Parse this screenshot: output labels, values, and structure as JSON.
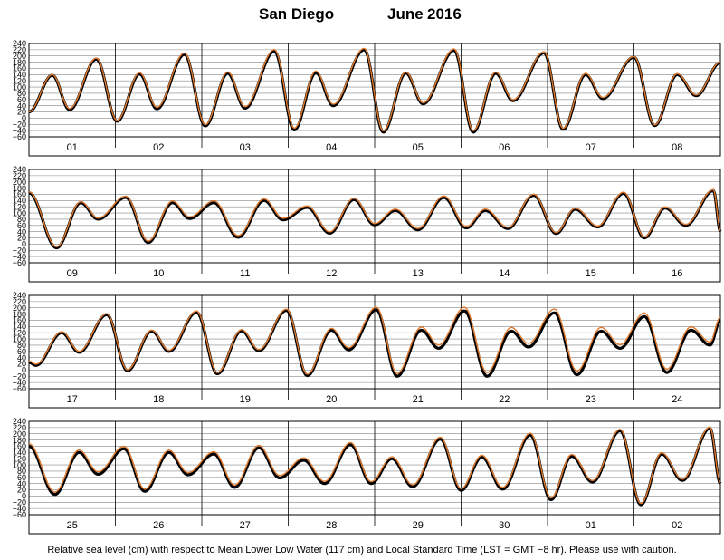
{
  "title": {
    "station": "San Diego",
    "month": "June",
    "year": "2016"
  },
  "caption": "Relative sea level (cm) with respect to Mean Lower Low Water (117 cm) and Local Standard Time (LST = GMT −8 hr). Please use with caution.",
  "colors": {
    "observed": "#000000",
    "predicted": "#e07a2e",
    "grid": "#888888",
    "frame": "#000000"
  },
  "chart_data": {
    "type": "line",
    "ylim": [
      -60,
      240
    ],
    "ytick_labels": [
      "240",
      "220",
      "200",
      "180",
      "160",
      "140",
      "120",
      "100",
      "80",
      "60",
      "40",
      "20",
      "0",
      "−20",
      "−40",
      "−60"
    ],
    "grid": true,
    "series_names": [
      "observed",
      "predicted"
    ],
    "panels": [
      {
        "days": [
          "01",
          "02",
          "03",
          "04",
          "05",
          "06",
          "07",
          "08"
        ],
        "extrema": [
          [
            0,
            20
          ],
          [
            0.27,
            138
          ],
          [
            0.47,
            27
          ],
          [
            0.78,
            190
          ],
          [
            1.02,
            -10
          ],
          [
            1.28,
            142
          ],
          [
            1.48,
            30
          ],
          [
            1.8,
            205
          ],
          [
            2.04,
            -25
          ],
          [
            2.3,
            144
          ],
          [
            2.5,
            32
          ],
          [
            2.84,
            215
          ],
          [
            3.07,
            -38
          ],
          [
            3.32,
            146
          ],
          [
            3.52,
            40
          ],
          [
            3.88,
            220
          ],
          [
            4.1,
            -45
          ],
          [
            4.36,
            145
          ],
          [
            4.56,
            46
          ],
          [
            4.92,
            218
          ],
          [
            5.14,
            -45
          ],
          [
            5.4,
            144
          ],
          [
            5.6,
            56
          ],
          [
            5.96,
            210
          ],
          [
            6.18,
            -36
          ],
          [
            6.44,
            140
          ],
          [
            6.64,
            63
          ],
          [
            7,
            196
          ],
          [
            7.24,
            -24
          ],
          [
            7.5,
            140
          ],
          [
            7.72,
            72
          ],
          [
            8,
            178
          ]
        ],
        "pred_offsets": [
          [
            0,
            0
          ],
          [
            0.5,
            4
          ],
          [
            1,
            3
          ],
          [
            1.5,
            5
          ],
          [
            2,
            4
          ],
          [
            2.5,
            5
          ],
          [
            3,
            6
          ],
          [
            3.5,
            5
          ],
          [
            4,
            4
          ],
          [
            4.5,
            3
          ],
          [
            5,
            5
          ],
          [
            5.5,
            4
          ],
          [
            6,
            3
          ],
          [
            6.5,
            4
          ],
          [
            7,
            2
          ],
          [
            7.5,
            3
          ],
          [
            8,
            2
          ]
        ]
      },
      {
        "days": [
          "09",
          "10",
          "11",
          "12",
          "13",
          "14",
          "15",
          "16"
        ],
        "extrema": [
          [
            0,
            165
          ],
          [
            0.32,
            -12
          ],
          [
            0.6,
            133
          ],
          [
            0.8,
            80
          ],
          [
            1.12,
            150
          ],
          [
            1.38,
            5
          ],
          [
            1.66,
            133
          ],
          [
            1.86,
            82
          ],
          [
            2.14,
            133
          ],
          [
            2.42,
            22
          ],
          [
            2.72,
            140
          ],
          [
            2.94,
            78
          ],
          [
            3.22,
            118
          ],
          [
            3.48,
            35
          ],
          [
            3.76,
            143
          ],
          [
            4.0,
            62
          ],
          [
            4.24,
            108
          ],
          [
            4.5,
            46
          ],
          [
            4.8,
            150
          ],
          [
            5.06,
            52
          ],
          [
            5.28,
            108
          ],
          [
            5.54,
            50
          ],
          [
            5.84,
            157
          ],
          [
            6.1,
            34
          ],
          [
            6.32,
            112
          ],
          [
            6.58,
            55
          ],
          [
            6.88,
            163
          ],
          [
            7.12,
            20
          ],
          [
            7.36,
            116
          ],
          [
            7.6,
            60
          ],
          [
            7.92,
            172
          ],
          [
            8,
            40
          ]
        ],
        "pred_offsets": [
          [
            0,
            3
          ],
          [
            1,
            4
          ],
          [
            2,
            6
          ],
          [
            3,
            5
          ],
          [
            4,
            4
          ],
          [
            5,
            5
          ],
          [
            6,
            3
          ],
          [
            7,
            4
          ],
          [
            8,
            3
          ]
        ]
      },
      {
        "days": [
          "17",
          "18",
          "19",
          "20",
          "21",
          "22",
          "23",
          "24"
        ],
        "extrema": [
          [
            0,
            25
          ],
          [
            0.08,
            15
          ],
          [
            0.38,
            120
          ],
          [
            0.58,
            57
          ],
          [
            0.9,
            178
          ],
          [
            1.14,
            -2
          ],
          [
            1.42,
            125
          ],
          [
            1.62,
            60
          ],
          [
            1.94,
            186
          ],
          [
            2.18,
            -12
          ],
          [
            2.46,
            126
          ],
          [
            2.66,
            62
          ],
          [
            2.98,
            192
          ],
          [
            3.22,
            -18
          ],
          [
            3.5,
            128
          ],
          [
            3.7,
            65
          ],
          [
            4.02,
            194
          ],
          [
            4.26,
            -20
          ],
          [
            4.54,
            128
          ],
          [
            4.74,
            70
          ],
          [
            5.04,
            190
          ],
          [
            5.3,
            -20
          ],
          [
            5.58,
            125
          ],
          [
            5.78,
            74
          ],
          [
            6.08,
            184
          ],
          [
            6.34,
            -15
          ],
          [
            6.62,
            125
          ],
          [
            6.84,
            70
          ],
          [
            7.12,
            172
          ],
          [
            7.38,
            -8
          ],
          [
            7.66,
            128
          ],
          [
            7.88,
            80
          ],
          [
            8,
            160
          ]
        ],
        "pred_offsets": [
          [
            0,
            4
          ],
          [
            1,
            3
          ],
          [
            2,
            4
          ],
          [
            3,
            4
          ],
          [
            4,
            8
          ],
          [
            5,
            12
          ],
          [
            6,
            12
          ],
          [
            7,
            12
          ],
          [
            8,
            10
          ]
        ]
      },
      {
        "days": [
          "25",
          "26",
          "27",
          "28",
          "29",
          "30",
          "01",
          "02"
        ],
        "extrema": [
          [
            0,
            160
          ],
          [
            0.3,
            5
          ],
          [
            0.58,
            140
          ],
          [
            0.8,
            70
          ],
          [
            1.1,
            152
          ],
          [
            1.34,
            15
          ],
          [
            1.62,
            140
          ],
          [
            1.84,
            68
          ],
          [
            2.14,
            135
          ],
          [
            2.38,
            28
          ],
          [
            2.66,
            155
          ],
          [
            2.9,
            58
          ],
          [
            3.18,
            115
          ],
          [
            3.42,
            40
          ],
          [
            3.72,
            165
          ],
          [
            3.96,
            40
          ],
          [
            4.2,
            120
          ],
          [
            4.44,
            30
          ],
          [
            4.76,
            183
          ],
          [
            5.0,
            18
          ],
          [
            5.24,
            125
          ],
          [
            5.48,
            22
          ],
          [
            5.8,
            196
          ],
          [
            6.04,
            -12
          ],
          [
            6.28,
            128
          ],
          [
            6.52,
            45
          ],
          [
            6.84,
            210
          ],
          [
            7.08,
            -28
          ],
          [
            7.32,
            135
          ],
          [
            7.56,
            50
          ],
          [
            7.88,
            218
          ],
          [
            8,
            40
          ]
        ],
        "pred_offsets": [
          [
            0,
            8
          ],
          [
            1,
            8
          ],
          [
            2,
            7
          ],
          [
            3,
            8
          ],
          [
            4,
            6
          ],
          [
            5,
            6
          ],
          [
            6,
            6
          ],
          [
            7,
            4
          ],
          [
            8,
            4
          ]
        ]
      }
    ]
  }
}
